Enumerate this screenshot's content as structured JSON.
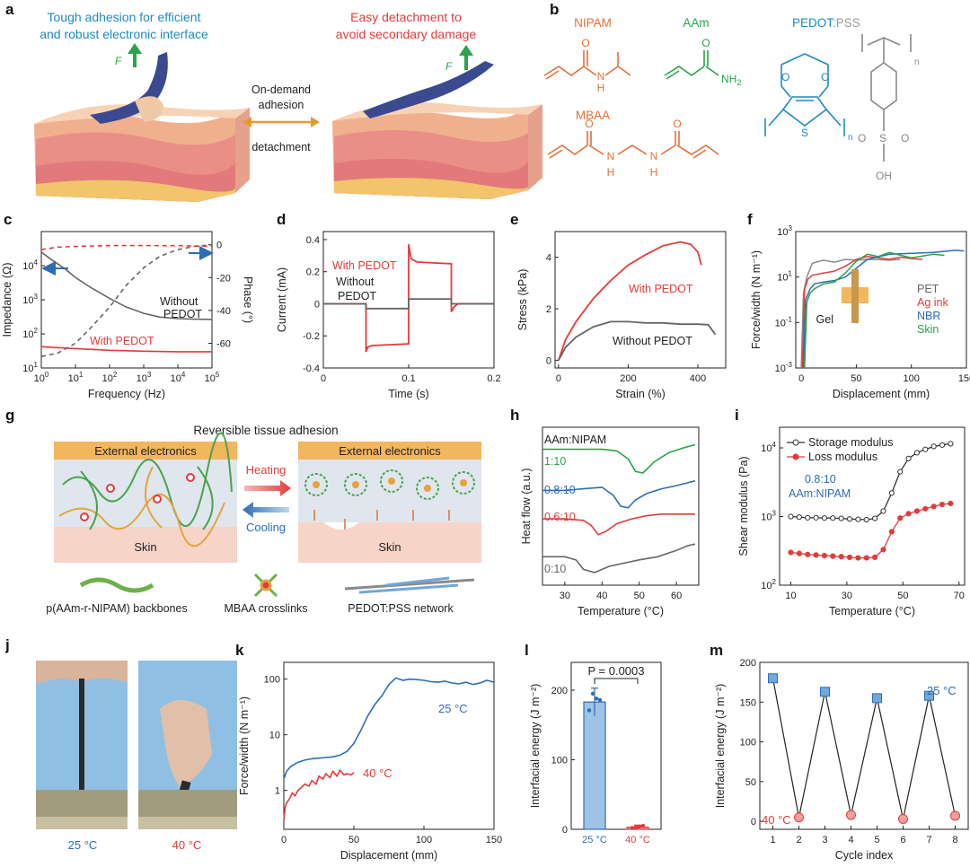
{
  "colors": {
    "red": "#e23b3b",
    "blue": "#2d6db5",
    "green": "#2aa34a",
    "grey": "#666666",
    "orange": "#e4703a",
    "teal": "#1f8ac0",
    "lightblue": "#9ec3e6"
  },
  "panel_a": {
    "letter": "a",
    "left_caption": [
      "Tough adhesion for efficient",
      "and robust electronic interface"
    ],
    "right_caption": [
      "Easy detachment to",
      "avoid secondary damage"
    ],
    "force_label": "F",
    "middle": [
      "On-demand",
      "adhesion",
      "detachment"
    ]
  },
  "panel_b": {
    "letter": "b",
    "nipam": "NIPAM",
    "aam": "AAm",
    "mbaa": "MBAA",
    "pedot_a": "PEDOT",
    "pedot_b": ":PSS",
    "atoms": {
      "O": "O",
      "N": "N",
      "H": "H",
      "NH": "NH",
      "two": "2",
      "S": "S",
      "n": "n",
      "OH": "OH"
    }
  },
  "panel_g": {
    "letter": "g",
    "title": "Reversible tissue adhesion",
    "ext": "External electronics",
    "skin": "Skin",
    "heating": "Heating",
    "cooling": "Cooling",
    "legend": [
      "p(AAm-r-NIPAM) backbones",
      "MBAA crosslinks",
      "PEDOT:PSS network"
    ]
  },
  "panel_j": {
    "letter": "j",
    "labels": [
      "25 °C",
      "40 °C"
    ]
  },
  "chart_data": [
    {
      "id": "c",
      "letter": "c",
      "type": "line",
      "xlabel": "Frequency (Hz)",
      "ylabel": "Impedance (Ω)",
      "y2label": "Phase (°)",
      "xscale": "log",
      "yscale": "log",
      "xlim": [
        1,
        100000
      ],
      "ylim": [
        10,
        100000
      ],
      "y2lim": [
        -75,
        8
      ],
      "xticks": [
        "10^0",
        "10^1",
        "10^2",
        "10^3",
        "10^4",
        "10^5"
      ],
      "yticks": [
        "10^1",
        "10^2",
        "10^3",
        "10^4"
      ],
      "y2ticks": [
        "0",
        "-20",
        "-40",
        "-60"
      ],
      "annotations": [
        "Without",
        "PEDOT",
        "With PEDOT"
      ],
      "series": [
        {
          "id": "imp_without",
          "color": "#666666",
          "dash": false,
          "x": [
            1,
            2,
            5,
            10,
            30,
            100,
            300,
            1000,
            3000,
            10000,
            30000,
            100000
          ],
          "y": [
            25000,
            15000,
            8000,
            4500,
            2200,
            1100,
            620,
            400,
            310,
            280,
            270,
            265
          ]
        },
        {
          "id": "imp_with",
          "color": "#e23b3b",
          "dash": false,
          "x": [
            1,
            10,
            100,
            1000,
            10000,
            100000
          ],
          "y": [
            42,
            37,
            33,
            31,
            30,
            30
          ]
        },
        {
          "id": "phase_without",
          "color": "#666666",
          "dash": true,
          "y2": true,
          "x": [
            1,
            3,
            10,
            30,
            100,
            300,
            1000,
            3000,
            10000,
            30000,
            100000
          ],
          "y": [
            -68,
            -66,
            -60,
            -50,
            -38,
            -25,
            -14,
            -7,
            -3,
            -1,
            0
          ]
        },
        {
          "id": "phase_with",
          "color": "#e23b3b",
          "dash": true,
          "y2": true,
          "x": [
            1,
            3,
            10,
            100,
            1000,
            10000,
            100000
          ],
          "y": [
            -3,
            -1.5,
            -1,
            -0.5,
            -0.5,
            -0.6,
            -1
          ]
        }
      ]
    },
    {
      "id": "d",
      "letter": "d",
      "type": "line",
      "xlabel": "Time (s)",
      "ylabel": "Current (mA)",
      "xlim": [
        0,
        0.2
      ],
      "ylim": [
        -0.4,
        0.45
      ],
      "xticks": [
        "0",
        "0.1",
        "0.2"
      ],
      "yticks": [
        "0.4",
        "0.2",
        "0",
        "-0.2",
        "-0.4"
      ],
      "annotations": [
        "With PEDOT",
        "Without",
        "PEDOT"
      ],
      "series": [
        {
          "id": "with",
          "color": "#e23b3b",
          "x": [
            0,
            0.05,
            0.05,
            0.052,
            0.057,
            0.1,
            0.1,
            0.103,
            0.11,
            0.15,
            0.15,
            0.153,
            0.158,
            0.2
          ],
          "y": [
            0,
            0,
            -0.3,
            -0.27,
            -0.26,
            -0.25,
            0.37,
            0.28,
            0.26,
            0.25,
            -0.05,
            -0.02,
            0,
            0
          ]
        },
        {
          "id": "without",
          "color": "#666666",
          "x": [
            0,
            0.05,
            0.05,
            0.1,
            0.1,
            0.15,
            0.15,
            0.2
          ],
          "y": [
            0,
            0,
            -0.03,
            -0.03,
            0.03,
            0.03,
            0,
            0
          ]
        }
      ]
    },
    {
      "id": "e",
      "letter": "e",
      "type": "line",
      "xlabel": "Strain (%)",
      "ylabel": "Stress (kPa)",
      "xlim": [
        -10,
        480
      ],
      "ylim": [
        -0.3,
        5
      ],
      "xticks": [
        "0",
        "200",
        "400"
      ],
      "yticks": [
        "0",
        "2",
        "4"
      ],
      "annotations": [
        "With PEDOT",
        "Without PEDOT"
      ],
      "series": [
        {
          "id": "with",
          "color": "#e23b3b",
          "x": [
            0,
            20,
            50,
            100,
            150,
            200,
            250,
            300,
            350,
            380,
            400,
            410
          ],
          "y": [
            0,
            0.8,
            1.5,
            2.4,
            3.1,
            3.7,
            4.1,
            4.45,
            4.6,
            4.5,
            4.2,
            3.7
          ]
        },
        {
          "id": "without",
          "color": "#666666",
          "x": [
            0,
            20,
            50,
            100,
            150,
            200,
            250,
            300,
            350,
            400,
            430,
            450
          ],
          "y": [
            0,
            0.5,
            0.9,
            1.3,
            1.5,
            1.5,
            1.45,
            1.45,
            1.4,
            1.4,
            1.38,
            1.0
          ]
        }
      ]
    },
    {
      "id": "f",
      "letter": "f",
      "type": "line",
      "xlabel": "Displacement (mm)",
      "ylabel": "Force/width (N m⁻¹)",
      "yscale": "log",
      "xlim": [
        -5,
        150
      ],
      "ylim": [
        0.001,
        1000
      ],
      "xticks": [
        "0",
        "50",
        "100",
        "150"
      ],
      "yticks": [
        "10^-3",
        "10^-1",
        "10^1",
        "10^3"
      ],
      "legend": [
        "PET",
        "Ag ink",
        "NBR",
        "Skin"
      ],
      "gel_label": "Gel",
      "series": [
        {
          "id": "PET",
          "color": "#8a8a8a",
          "x": [
            0,
            2,
            5,
            10,
            20,
            30,
            40,
            50,
            60,
            70,
            80,
            90
          ],
          "y": [
            0.001,
            2,
            10,
            40,
            55,
            45,
            60,
            55,
            60,
            58,
            55,
            60
          ]
        },
        {
          "id": "Ag ink",
          "color": "#e23b3b",
          "x": [
            1,
            3,
            6,
            10,
            20,
            30,
            40,
            50,
            60,
            70,
            80,
            90,
            100,
            110
          ],
          "y": [
            0.001,
            3,
            8,
            12,
            15,
            18,
            30,
            60,
            80,
            70,
            60,
            75,
            65,
            60
          ]
        },
        {
          "id": "NBR",
          "color": "#2d6db5",
          "x": [
            2,
            4,
            8,
            12,
            20,
            30,
            40,
            60,
            80,
            100,
            120,
            140,
            148
          ],
          "y": [
            0.001,
            1,
            3,
            5,
            6,
            7,
            10,
            60,
            100,
            110,
            120,
            150,
            140
          ]
        },
        {
          "id": "Skin",
          "color": "#2aa34a",
          "x": [
            3,
            5,
            8,
            12,
            20,
            30,
            40,
            50,
            60,
            70,
            80,
            100,
            120,
            130
          ],
          "y": [
            0.001,
            0.8,
            2,
            3,
            5,
            6,
            15,
            50,
            100,
            80,
            120,
            70,
            100,
            90
          ]
        }
      ]
    },
    {
      "id": "h",
      "letter": "h",
      "type": "line",
      "xlabel": "Temperature (°C)",
      "ylabel": "Heat flow (a.u.)",
      "xlim": [
        24,
        66
      ],
      "ylim": [
        0,
        1
      ],
      "xticks": [
        "30",
        "40",
        "50",
        "60"
      ],
      "labels": [
        "AAm:NIPAM",
        "1:10",
        "0.8:10",
        "0.6:10",
        "0:10"
      ],
      "series": [
        {
          "id": "1:10",
          "color": "#2aa34a",
          "x": [
            24,
            30,
            35,
            40,
            44,
            47,
            49,
            51,
            54,
            58,
            62,
            65
          ],
          "y": [
            0.86,
            0.86,
            0.86,
            0.86,
            0.85,
            0.8,
            0.72,
            0.71,
            0.78,
            0.84,
            0.87,
            0.89
          ]
        },
        {
          "id": "0.8:10",
          "color": "#2d6db5",
          "x": [
            24,
            30,
            35,
            40,
            43,
            45,
            47,
            49,
            52,
            56,
            60,
            65
          ],
          "y": [
            0.6,
            0.6,
            0.61,
            0.62,
            0.57,
            0.5,
            0.49,
            0.54,
            0.58,
            0.61,
            0.63,
            0.66
          ]
        },
        {
          "id": "0.6:10",
          "color": "#e23b3b",
          "x": [
            24,
            30,
            35,
            37,
            39,
            41,
            44,
            48,
            52,
            56,
            60,
            65
          ],
          "y": [
            0.42,
            0.42,
            0.41,
            0.38,
            0.32,
            0.34,
            0.39,
            0.42,
            0.44,
            0.45,
            0.45,
            0.45
          ]
        },
        {
          "id": "0:10",
          "color": "#666666",
          "x": [
            24,
            30,
            33,
            35,
            38,
            42,
            46,
            50,
            55,
            60,
            63,
            65
          ],
          "y": [
            0.18,
            0.18,
            0.16,
            0.1,
            0.08,
            0.12,
            0.14,
            0.16,
            0.18,
            0.22,
            0.25,
            0.26
          ]
        }
      ]
    },
    {
      "id": "i",
      "letter": "i",
      "type": "line",
      "xlabel": "Temperature (°C)",
      "ylabel": "Shear modulus (Pa)",
      "yscale": "log",
      "xlim": [
        6,
        72
      ],
      "ylim": [
        100,
        20000
      ],
      "xticks": [
        "10",
        "30",
        "50",
        "70"
      ],
      "yticks": [
        "10^2",
        "10^3",
        "10^4"
      ],
      "legend": [
        "Storage modulus",
        "Loss modulus"
      ],
      "annotation": [
        "0.8:10",
        "AAm:NIPAM"
      ],
      "series": [
        {
          "id": "storage",
          "color": "#333333",
          "x": [
            10,
            13,
            16,
            19,
            22,
            25,
            28,
            31,
            34,
            37,
            40,
            43,
            46,
            49,
            52,
            55,
            58,
            61,
            64,
            67
          ],
          "y": [
            1000,
            980,
            960,
            960,
            950,
            950,
            940,
            920,
            910,
            900,
            940,
            1200,
            2200,
            4500,
            7000,
            8500,
            9500,
            10500,
            11000,
            11500
          ]
        },
        {
          "id": "loss",
          "color": "#e23b3b",
          "x": [
            10,
            13,
            16,
            19,
            22,
            25,
            28,
            31,
            34,
            37,
            40,
            43,
            46,
            49,
            52,
            55,
            58,
            61,
            64,
            67
          ],
          "y": [
            300,
            290,
            280,
            275,
            270,
            265,
            260,
            255,
            250,
            250,
            255,
            330,
            600,
            950,
            1100,
            1200,
            1300,
            1400,
            1500,
            1550
          ]
        }
      ]
    },
    {
      "id": "k",
      "letter": "k",
      "type": "line",
      "xlabel": "Displacement (mm)",
      "ylabel": "Force/width (N m⁻¹)",
      "yscale": "log",
      "xlim": [
        0,
        150
      ],
      "ylim": [
        0.2,
        200
      ],
      "xticks": [
        "0",
        "50",
        "100",
        "150"
      ],
      "yticks": [
        "1",
        "10",
        "100"
      ],
      "annotations": [
        "25 °C",
        "40 °C"
      ],
      "series": [
        {
          "id": "25C",
          "color": "#2d6db5",
          "x": [
            0,
            2,
            5,
            10,
            15,
            20,
            25,
            30,
            35,
            40,
            45,
            50,
            55,
            60,
            65,
            70,
            75,
            80,
            85,
            90,
            95,
            100,
            105,
            110,
            115,
            120,
            125,
            130,
            135,
            140,
            145,
            150
          ],
          "y": [
            1.6,
            2.2,
            2.7,
            3.2,
            3.5,
            3.7,
            3.8,
            3.9,
            4.0,
            4.3,
            5.0,
            7.0,
            12,
            22,
            35,
            50,
            80,
            105,
            95,
            100,
            98,
            95,
            90,
            88,
            92,
            85,
            82,
            88,
            80,
            85,
            95,
            88
          ]
        },
        {
          "id": "40C",
          "color": "#e23b3b",
          "x": [
            0,
            1,
            2,
            4,
            6,
            8,
            10,
            12,
            15,
            18,
            20,
            23,
            25,
            28,
            30,
            33,
            35,
            38,
            40,
            43,
            45,
            48,
            50
          ],
          "y": [
            0.3,
            0.5,
            0.6,
            0.7,
            0.9,
            0.8,
            1.0,
            1.1,
            1.3,
            1.2,
            1.5,
            1.3,
            1.8,
            1.6,
            2.0,
            1.7,
            2.2,
            1.8,
            2.3,
            1.9,
            2.0,
            1.9,
            2.1
          ]
        }
      ]
    },
    {
      "id": "l",
      "letter": "l",
      "type": "bar",
      "ylabel": "Interfacial energy (J m⁻²)",
      "categories": [
        "25 °C",
        "40 °C"
      ],
      "values": [
        183,
        3
      ],
      "errors": [
        20,
        3
      ],
      "ylim": [
        0,
        240
      ],
      "yticks": [
        "0",
        "100",
        "200"
      ],
      "annotation": "P = 0.0003",
      "points": [
        [
          171,
          195,
          188,
          186
        ],
        [
          2,
          3,
          4,
          5
        ]
      ]
    },
    {
      "id": "m",
      "letter": "m",
      "type": "line",
      "xlabel": "Cycle index",
      "ylabel": "Interfacial energy (J m⁻²)",
      "xlim": [
        0.5,
        8.5
      ],
      "ylim": [
        -10,
        200
      ],
      "xticks": [
        "1",
        "2",
        "3",
        "4",
        "5",
        "6",
        "7",
        "8"
      ],
      "yticks": [
        "0",
        "50",
        "100",
        "150",
        "200"
      ],
      "annotations": [
        "25 °C",
        "40 °C"
      ],
      "x": [
        1,
        2,
        3,
        4,
        5,
        6,
        7,
        8
      ],
      "y": [
        180,
        5,
        163,
        8,
        155,
        3,
        158,
        7
      ]
    }
  ]
}
